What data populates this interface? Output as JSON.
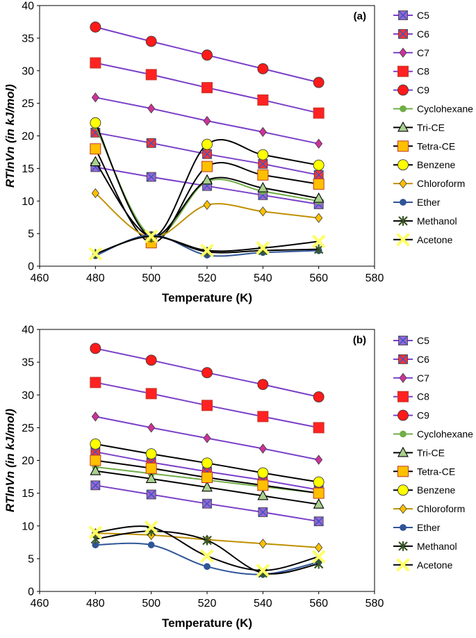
{
  "chart_data": [
    {
      "type": "line",
      "panel_label": "(a)",
      "xlabel": "Temperature (K)",
      "ylabel": "RTlnVn (in kJ/mol)",
      "xlim": [
        460,
        580
      ],
      "ylim": [
        0,
        40
      ],
      "xticks": [
        460,
        480,
        500,
        520,
        540,
        560,
        580
      ],
      "yticks": [
        0,
        5,
        10,
        15,
        20,
        25,
        30,
        35,
        40
      ],
      "x": [
        480,
        500,
        520,
        540,
        560
      ],
      "legend_position": "right",
      "series": [
        {
          "name": "C5",
          "values": [
            15.2,
            13.7,
            12.3,
            10.9,
            9.5
          ],
          "color": "#9966cc",
          "line": "#7a3fc8",
          "marker": "square-x",
          "curve": "straight"
        },
        {
          "name": "C6",
          "values": [
            20.5,
            18.9,
            17.2,
            15.7,
            14.0
          ],
          "color": "#ff3333",
          "line": "#7a3fc8",
          "marker": "square-x",
          "curve": "straight"
        },
        {
          "name": "C7",
          "values": [
            25.9,
            24.2,
            22.3,
            20.6,
            18.8
          ],
          "color": "#cc3399",
          "line": "#7a3fc8",
          "marker": "diamond",
          "curve": "straight"
        },
        {
          "name": "C8",
          "values": [
            31.2,
            29.4,
            27.4,
            25.5,
            23.5
          ],
          "color": "#ff2222",
          "line": "#7a3fc8",
          "marker": "square",
          "curve": "straight"
        },
        {
          "name": "C9",
          "values": [
            36.7,
            34.5,
            32.4,
            30.3,
            28.2
          ],
          "color": "#ff1a1a",
          "line": "#7a3fc8",
          "marker": "circle",
          "curve": "straight"
        },
        {
          "name": "Cyclohexane",
          "values": [
            21.5,
            4.6,
            13.0,
            11.5,
            10.0
          ],
          "color": "#70ad47",
          "line": "#70ad47",
          "marker": "circle-small",
          "curve": "smooth"
        },
        {
          "name": "Tri-CE",
          "values": [
            16.0,
            4.5,
            13.2,
            12.0,
            10.4
          ],
          "color": "#a9d18e",
          "line": "#000000",
          "marker": "triangle",
          "curve": "smooth"
        },
        {
          "name": "Tetra-CE",
          "values": [
            18.0,
            3.6,
            15.3,
            14.0,
            12.6
          ],
          "color": "#ffc000",
          "line": "#000000",
          "marker": "square",
          "curve": "smooth"
        },
        {
          "name": "Benzene",
          "values": [
            22.0,
            4.5,
            18.7,
            17.1,
            15.5
          ],
          "color": "#ffff00",
          "line": "#000000",
          "marker": "circle",
          "curve": "smooth"
        },
        {
          "name": "Chloroform",
          "values": [
            11.2,
            4.4,
            9.4,
            8.4,
            7.4
          ],
          "color": "#ffc000",
          "line": "#bf9000",
          "marker": "diamond",
          "curve": "smooth"
        },
        {
          "name": "Ether",
          "values": [
            1.6,
            4.8,
            1.7,
            2.1,
            2.4
          ],
          "color": "#2f5597",
          "line": "#2f5597",
          "marker": "circle-small",
          "curve": "smooth"
        },
        {
          "name": "Methanol",
          "values": [
            1.9,
            4.6,
            2.2,
            2.4,
            2.6
          ],
          "color": "#375623",
          "line": "#000000",
          "marker": "star",
          "curve": "smooth"
        },
        {
          "name": "Acetone",
          "values": [
            1.9,
            4.6,
            2.4,
            2.8,
            3.8
          ],
          "color": "#ffff66",
          "line": "#000000",
          "marker": "x-fat",
          "curve": "smooth"
        }
      ]
    },
    {
      "type": "line",
      "panel_label": "(b)",
      "xlabel": "Temperature (K)",
      "ylabel": "RTlnVn (in kJ/mol)",
      "xlim": [
        460,
        580
      ],
      "ylim": [
        0,
        40
      ],
      "xticks": [
        460,
        480,
        500,
        520,
        540,
        560,
        580
      ],
      "yticks": [
        0,
        5,
        10,
        15,
        20,
        25,
        30,
        35,
        40
      ],
      "x": [
        480,
        500,
        520,
        540,
        560
      ],
      "legend_position": "right",
      "series": [
        {
          "name": "C5",
          "values": [
            16.2,
            14.8,
            13.4,
            12.1,
            10.7
          ],
          "color": "#9966cc",
          "line": "#7a3fc8",
          "marker": "square-x",
          "curve": "straight"
        },
        {
          "name": "C6",
          "values": [
            21.3,
            19.7,
            18.3,
            17.0,
            15.5
          ],
          "color": "#ff3333",
          "line": "#7a3fc8",
          "marker": "square-x",
          "curve": "straight"
        },
        {
          "name": "C7",
          "values": [
            26.7,
            25.0,
            23.4,
            21.8,
            20.1
          ],
          "color": "#cc3399",
          "line": "#7a3fc8",
          "marker": "diamond",
          "curve": "straight"
        },
        {
          "name": "C8",
          "values": [
            31.9,
            30.2,
            28.4,
            26.7,
            25.0
          ],
          "color": "#ff2222",
          "line": "#7a3fc8",
          "marker": "square",
          "curve": "straight"
        },
        {
          "name": "C9",
          "values": [
            37.1,
            35.3,
            33.4,
            31.6,
            29.7
          ],
          "color": "#ff1a1a",
          "line": "#7a3fc8",
          "marker": "circle",
          "curve": "straight"
        },
        {
          "name": "Cyclohexane",
          "values": [
            19.0,
            18.0,
            17.0,
            16.0,
            15.0
          ],
          "color": "#70ad47",
          "line": "#70ad47",
          "marker": "circle-small",
          "curve": "smooth"
        },
        {
          "name": "Tri-CE",
          "values": [
            18.4,
            17.2,
            15.9,
            14.6,
            13.3
          ],
          "color": "#a9d18e",
          "line": "#000000",
          "marker": "triangle",
          "curve": "smooth"
        },
        {
          "name": "Tetra-CE",
          "values": [
            20.0,
            18.8,
            17.4,
            16.2,
            15.0
          ],
          "color": "#ffc000",
          "line": "#000000",
          "marker": "square",
          "curve": "smooth"
        },
        {
          "name": "Benzene",
          "values": [
            22.5,
            21.0,
            19.6,
            18.1,
            16.7
          ],
          "color": "#ffff00",
          "line": "#000000",
          "marker": "circle",
          "curve": "smooth"
        },
        {
          "name": "Chloroform",
          "values": [
            8.9,
            8.6,
            7.9,
            7.3,
            6.7
          ],
          "color": "#ffc000",
          "line": "#bf9000",
          "marker": "diamond",
          "curve": "smooth"
        },
        {
          "name": "Ether",
          "values": [
            7.1,
            7.1,
            3.8,
            2.6,
            4.5
          ],
          "color": "#2f5597",
          "line": "#2f5597",
          "marker": "circle-small",
          "curve": "smooth"
        },
        {
          "name": "Methanol",
          "values": [
            8.0,
            9.2,
            7.8,
            2.8,
            4.2
          ],
          "color": "#375623",
          "line": "#000000",
          "marker": "star",
          "curve": "smooth"
        },
        {
          "name": "Acetone",
          "values": [
            9.0,
            9.8,
            5.4,
            3.2,
            5.3
          ],
          "color": "#ffff66",
          "line": "#000000",
          "marker": "x-fat",
          "curve": "smooth"
        }
      ]
    }
  ]
}
